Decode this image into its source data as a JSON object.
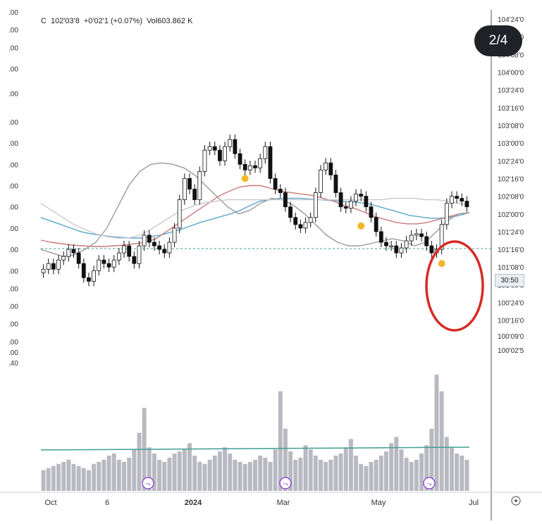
{
  "header": {
    "ohlc_prefix": "C",
    "close": "102'03'8",
    "change": "+0'02'1 (+0.07%)",
    "volume_label": "Vol",
    "volume": "603.862 K"
  },
  "badge": {
    "page_indicator": "2/4"
  },
  "price_tag": {
    "value": "30:50"
  },
  "colors": {
    "up": "#ffffff",
    "down": "#111111",
    "ma_blue": "#5aa7c9",
    "ma_red": "#c9797a",
    "ma_gray": "#9a9a9a",
    "ma_light": "#c8c8d0",
    "volume_bar": "#b9b9c2",
    "volume_ma": "#3f9f96",
    "marker_dot": "#f2b62a",
    "circle": "#d62b25",
    "dashed_level": "#3f9f96"
  },
  "chart_data": {
    "type": "candlestick",
    "title": "",
    "x_tick_labels": [
      "Oct",
      "6",
      "2024",
      "Mar",
      "May",
      "Jul"
    ],
    "y_tick_labels": [
      "104'24'0",
      "104'16'0",
      "104'08'0",
      "104'00'0",
      "103'24'0",
      "103'16'0",
      "103'08'0",
      "103'00'0",
      "102'24'0",
      "102'16'0",
      "102'08'0",
      "102'00'0",
      "101'24'0",
      "101'16'0",
      "101'08'0",
      "101'00'0",
      "100'24'0",
      "100'16'0",
      "100'09'0",
      "100'02'5"
    ],
    "y_tick_values": [
      104.75,
      104.5,
      104.25,
      104.0,
      103.75,
      103.5,
      103.25,
      103.0,
      102.75,
      102.5,
      102.25,
      102.0,
      101.75,
      101.5,
      101.25,
      101.0,
      100.75,
      100.5,
      100.28,
      100.08
    ],
    "ylim": [
      100.0,
      104.8
    ],
    "left_axis_labels": [
      ".00",
      ".00",
      ".00",
      ".00",
      ".00",
      ".00",
      ".00",
      ".00",
      ".00",
      ".00",
      ".00",
      ".00",
      ".00",
      ".00",
      ".00",
      ".00",
      ".00",
      ".00",
      ".40"
    ],
    "left_axis_label_values": [
      104.85,
      104.6,
      104.35,
      104.05,
      103.7,
      103.3,
      103.0,
      102.7,
      102.4,
      102.1,
      101.8,
      101.5,
      101.2,
      100.95,
      100.7,
      100.45,
      100.2,
      100.05,
      99.9
    ],
    "dashed_level": 101.51,
    "price_series": [
      101.22,
      101.3,
      101.22,
      101.35,
      101.4,
      101.5,
      101.45,
      101.3,
      101.1,
      101.05,
      101.2,
      101.35,
      101.3,
      101.25,
      101.35,
      101.45,
      101.55,
      101.4,
      101.3,
      101.55,
      101.7,
      101.6,
      101.55,
      101.5,
      101.45,
      101.6,
      101.8,
      102.2,
      102.5,
      102.35,
      102.2,
      102.6,
      102.9,
      102.95,
      102.9,
      102.75,
      102.95,
      103.05,
      102.85,
      102.7,
      102.62,
      102.68,
      102.65,
      102.78,
      102.95,
      102.5,
      102.35,
      102.3,
      102.1,
      101.95,
      101.85,
      101.8,
      101.88,
      101.95,
      102.3,
      102.62,
      102.72,
      102.55,
      102.3,
      102.1,
      102.08,
      102.18,
      102.28,
      102.25,
      102.1,
      101.95,
      101.75,
      101.6,
      101.55,
      101.55,
      101.45,
      101.52,
      101.62,
      101.7,
      101.72,
      101.68,
      101.55,
      101.45,
      101.5,
      101.85,
      102.15,
      102.25,
      102.22,
      102.18,
      102.1
    ],
    "marker_dots": [
      {
        "index": 40,
        "value": 102.62
      },
      {
        "index": 63,
        "value": 101.95
      },
      {
        "index": 79,
        "value": 101.42
      }
    ],
    "volume_series": [
      20,
      22,
      24,
      26,
      28,
      30,
      26,
      24,
      22,
      20,
      26,
      28,
      30,
      34,
      36,
      30,
      28,
      32,
      40,
      56,
      80,
      42,
      36,
      30,
      28,
      32,
      36,
      38,
      40,
      46,
      34,
      28,
      26,
      30,
      34,
      38,
      42,
      36,
      30,
      28,
      26,
      28,
      30,
      34,
      32,
      28,
      40,
      96,
      60,
      38,
      30,
      32,
      44,
      40,
      34,
      30,
      28,
      30,
      34,
      36,
      42,
      50,
      34,
      26,
      24,
      28,
      30,
      34,
      38,
      46,
      52,
      40,
      32,
      28,
      30,
      36,
      44,
      60,
      112,
      96,
      52,
      42,
      36,
      34,
      30
    ],
    "volume_ma_level": 34,
    "moving_averages": [
      {
        "color_key": "ma_blue",
        "values": [
          101.95,
          101.9,
          101.85,
          101.8,
          101.75,
          101.72,
          101.7,
          101.68,
          101.67,
          101.66,
          101.66,
          101.68,
          101.7,
          101.74,
          101.78,
          101.83,
          101.88,
          101.92,
          101.96,
          102.0,
          102.05,
          102.12,
          102.18,
          102.2,
          102.22,
          102.22,
          102.22,
          102.21,
          102.2,
          102.19,
          102.18,
          102.17,
          102.16,
          102.14,
          102.1,
          102.06,
          102.02,
          101.98,
          101.96,
          101.94,
          101.94,
          101.95,
          101.98,
          102.02
        ]
      },
      {
        "color_key": "ma_red",
        "values": [
          101.63,
          101.6,
          101.58,
          101.56,
          101.55,
          101.54,
          101.54,
          101.55,
          101.56,
          101.58,
          101.6,
          101.65,
          101.75,
          101.85,
          101.95,
          102.05,
          102.15,
          102.25,
          102.32,
          102.38,
          102.4,
          102.4,
          102.36,
          102.32,
          102.3,
          102.28,
          102.26,
          102.22,
          102.18,
          102.12,
          102.08,
          102.02,
          101.96,
          101.92,
          101.88,
          101.86,
          101.86,
          101.88,
          101.92,
          101.96,
          102.0,
          102.02
        ]
      },
      {
        "color_key": "ma_gray",
        "values": [
          101.5,
          101.45,
          101.4,
          101.42,
          101.5,
          101.6,
          101.8,
          102.1,
          102.4,
          102.6,
          102.7,
          102.72,
          102.7,
          102.65,
          102.55,
          102.4,
          102.25,
          102.1,
          102.0,
          102.05,
          102.15,
          102.22,
          102.2,
          102.12,
          102.0,
          101.85,
          101.7,
          101.6,
          101.55,
          101.55,
          101.58,
          101.62,
          101.65,
          101.62,
          101.55,
          101.6,
          101.75,
          101.9,
          102.0,
          102.02
        ]
      },
      {
        "color_key": "ma_light",
        "values": [
          102.15,
          102.05,
          101.95,
          101.85,
          101.78,
          101.72,
          101.68,
          101.66,
          101.66,
          101.7,
          101.78,
          101.88,
          101.98,
          102.06,
          102.12,
          102.16,
          102.18,
          102.2,
          102.2,
          102.2,
          102.2,
          102.2,
          102.2,
          102.2,
          102.2,
          102.2,
          102.2,
          102.2,
          102.2,
          102.2,
          102.2,
          102.2,
          102.22,
          102.22,
          102.22,
          102.2,
          102.2,
          102.18,
          102.15,
          102.12
        ]
      }
    ],
    "grid": false,
    "legend": "none"
  }
}
